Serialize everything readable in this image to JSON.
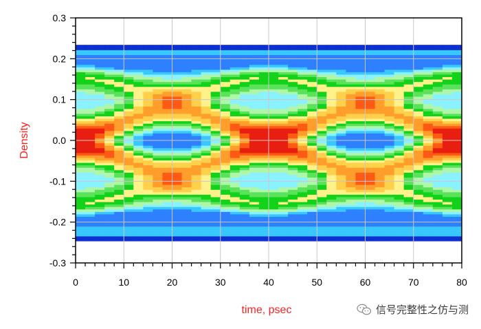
{
  "chart_data": {
    "type": "heatmap",
    "title": "",
    "xlabel": "time, psec",
    "ylabel": "Density",
    "xlim": [
      0,
      80
    ],
    "ylim": [
      -0.3,
      0.3
    ],
    "x_ticks": [
      "0",
      "10",
      "20",
      "30",
      "40",
      "50",
      "60",
      "70",
      "80"
    ],
    "y_ticks": [
      "0.3",
      "0.2",
      "0.1",
      "0.0",
      "-0.1",
      "-0.2",
      "-0.3"
    ],
    "grid": true,
    "eye_period_psec": 40,
    "upper_rail_density": 0.225,
    "lower_rail_density": -0.235,
    "palette": [
      "#0f2fd0",
      "#2f80ff",
      "#38c8ff",
      "#8af2ff",
      "#aef7a8",
      "#5ae25a",
      "#12d21a",
      "#fff28a",
      "#ffd04a",
      "#ff9e2a",
      "#ff5a14",
      "#e81e10"
    ]
  },
  "watermark": {
    "text": "信号完整性之仿与测",
    "icon": "wechat-icon"
  }
}
